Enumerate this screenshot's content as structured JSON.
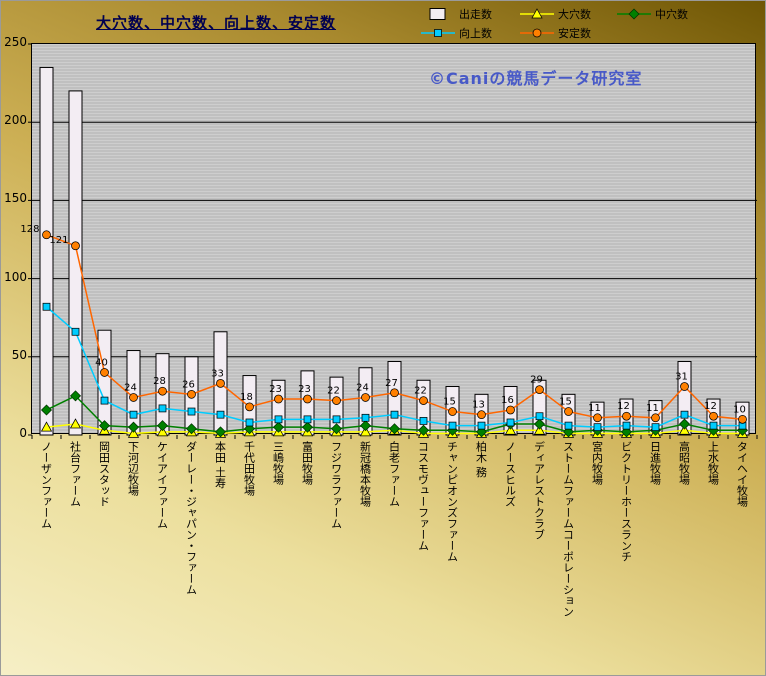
{
  "colors": {
    "background_top": "#6f5604",
    "background_upper": "#a8892e",
    "background_mid": "#cdb055",
    "background_lower": "#ecdf9d",
    "background_bottom": "#f6efc6",
    "plot_background": "#c0c0c0",
    "gridline": "#000000",
    "title_color": "#000050",
    "watermark_color": "#3b4ec8",
    "text_color": "#000000"
  },
  "chart_data": {
    "type": "bar",
    "title": "大穴数、中穴数、向上数、安定数",
    "watermark": "©Caniの競馬データ研究室",
    "xlabel": "",
    "ylabel": "",
    "ylim": [
      0,
      250
    ],
    "yticks": [
      0,
      50,
      100,
      150,
      200,
      250
    ],
    "grid": true,
    "legend_position": "top",
    "categories": [
      "ノーザンファーム",
      "社台ファーム",
      "岡田スタッド",
      "下河辺牧場",
      "ケイアイファーム",
      "ダーレー・ジャパン・ファーム",
      "本田 土寿",
      "千代田牧場",
      "三嶋牧場",
      "富田牧場",
      "フジワラファーム",
      "新冠橋本牧場",
      "白老ファーム",
      "コスモヴューファーム",
      "チャンピオンズファーム",
      "柏木 務",
      "ノースヒルズ",
      "ディアレストクラブ",
      "ストームファームコーポレーション",
      "宮内牧場",
      "ビクトリーホースランチ",
      "日進牧場",
      "高昭牧場",
      "上水牧場",
      "タイヘイ牧場"
    ],
    "series": [
      {
        "name": "出走数",
        "kind": "bar",
        "marker": "bar",
        "color": "#f3edf3",
        "border": "#000000",
        "values": [
          235,
          220,
          67,
          54,
          52,
          50,
          66,
          38,
          35,
          41,
          37,
          43,
          47,
          35,
          31,
          26,
          31,
          35,
          26,
          21,
          23,
          22,
          47,
          23,
          21
        ]
      },
      {
        "name": "大穴数",
        "kind": "line",
        "marker": "triangle",
        "color": "#ffff00",
        "line_color": "#ffff00",
        "values": [
          5,
          7,
          3,
          1,
          2,
          2,
          1,
          2,
          2,
          2,
          2,
          2,
          3,
          1,
          1,
          1,
          3,
          3,
          1,
          1,
          1,
          1,
          3,
          1,
          1
        ]
      },
      {
        "name": "中穴数",
        "kind": "line",
        "marker": "diamond",
        "color": "#008000",
        "line_color": "#008000",
        "values": [
          16,
          25,
          6,
          5,
          6,
          4,
          2,
          4,
          5,
          5,
          4,
          6,
          4,
          3,
          3,
          2,
          7,
          7,
          2,
          3,
          2,
          3,
          7,
          3,
          3
        ]
      },
      {
        "name": "向上数",
        "kind": "line",
        "marker": "square",
        "color": "#00ccff",
        "line_color": "#00ccff",
        "values": [
          82,
          66,
          22,
          13,
          17,
          15,
          13,
          8,
          10,
          10,
          10,
          11,
          13,
          9,
          6,
          6,
          8,
          12,
          6,
          5,
          6,
          5,
          13,
          6,
          6
        ]
      },
      {
        "name": "安定数",
        "kind": "line",
        "marker": "circle",
        "color": "#ff8000",
        "line_color": "#ff6600",
        "show_labels": true,
        "values": [
          128,
          121,
          40,
          24,
          28,
          26,
          33,
          18,
          23,
          23,
          22,
          24,
          27,
          22,
          15,
          13,
          16,
          29,
          15,
          11,
          12,
          11,
          31,
          12,
          10
        ]
      }
    ]
  }
}
